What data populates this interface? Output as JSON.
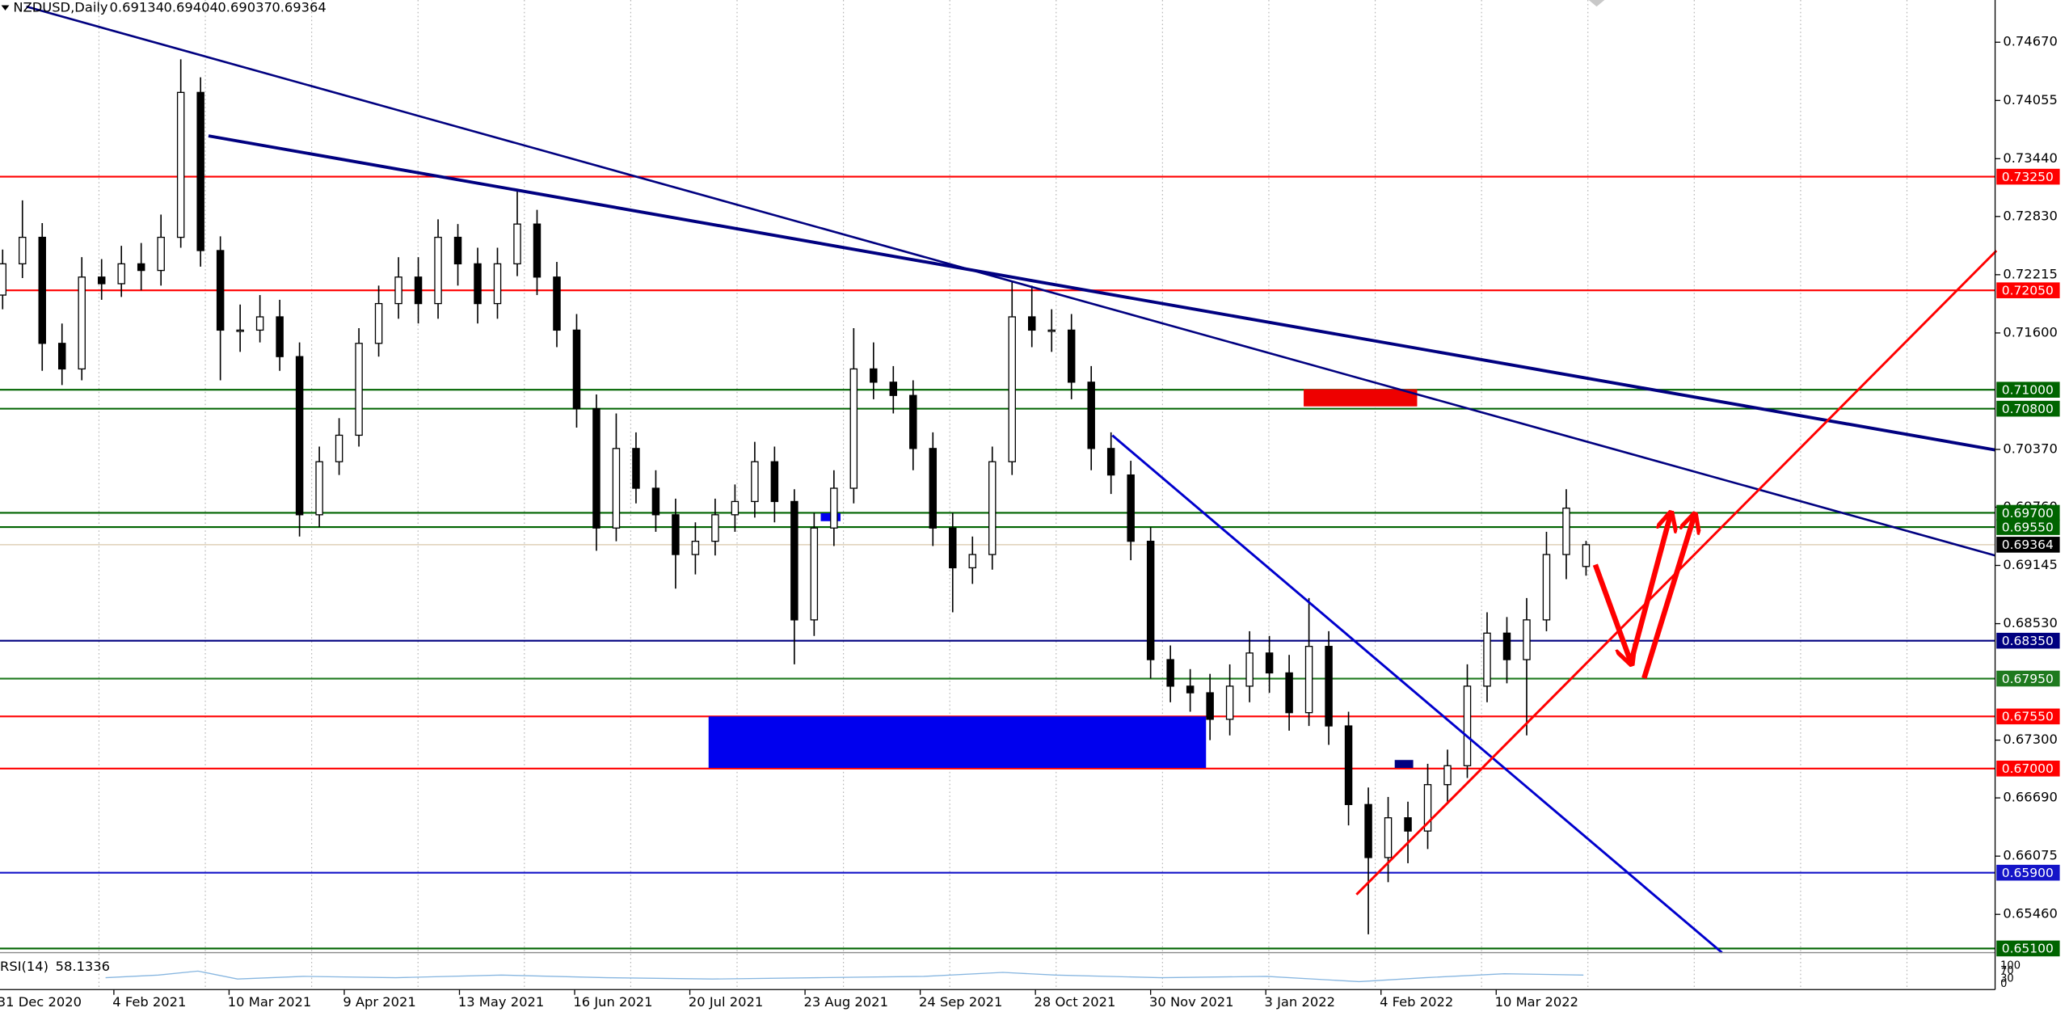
{
  "chart_data": {
    "type": "candlestick",
    "symbol": "NZDUSD,Daily",
    "open": [
      0.72,
      0.7233,
      0.7261,
      0.7149,
      0.7122,
      0.7219,
      0.7212,
      0.7233,
      0.7226,
      0.7261,
      0.7414,
      0.7247,
      0.7163,
      0.7163,
      0.7177,
      0.7135,
      0.6968,
      0.7024,
      0.7052,
      0.7149,
      0.7191,
      0.7219,
      0.7191,
      0.7261,
      0.7233,
      0.7191,
      0.7233,
      0.7275,
      0.7219,
      0.7163,
      0.708,
      0.6954,
      0.7038,
      0.6996,
      0.6968,
      0.6926,
      0.694,
      0.6968,
      0.6982,
      0.7024,
      0.6982,
      0.6857,
      0.6954,
      0.6996,
      0.7122,
      0.7108,
      0.7094,
      0.7038,
      0.6954,
      0.6912,
      0.6926,
      0.7024,
      0.7177,
      0.7163,
      0.7163,
      0.7108,
      0.7038,
      0.701,
      0.694,
      0.6815,
      0.6787,
      0.678,
      0.6752,
      0.6787,
      0.6822,
      0.6801,
      0.6759,
      0.6829,
      0.6745,
      0.6662,
      0.6606,
      0.6648,
      0.6634,
      0.6683,
      0.6703,
      0.6787,
      0.6843,
      0.6815,
      0.6857,
      0.6926,
      0.69134
    ],
    "high": [
      0.7248,
      0.73,
      0.7276,
      0.717,
      0.724,
      0.7238,
      0.7252,
      0.7255,
      0.7285,
      0.7449,
      0.743,
      0.7262,
      0.719,
      0.72,
      0.7195,
      0.715,
      0.704,
      0.707,
      0.7165,
      0.721,
      0.724,
      0.724,
      0.728,
      0.7275,
      0.725,
      0.725,
      0.731,
      0.729,
      0.7235,
      0.718,
      0.7095,
      0.7075,
      0.7055,
      0.7015,
      0.6985,
      0.696,
      0.6985,
      0.7,
      0.7045,
      0.704,
      0.6995,
      0.697,
      0.7015,
      0.7165,
      0.715,
      0.7125,
      0.711,
      0.7055,
      0.697,
      0.6945,
      0.704,
      0.7215,
      0.721,
      0.7185,
      0.718,
      0.7125,
      0.7055,
      0.7025,
      0.6955,
      0.683,
      0.6805,
      0.68,
      0.681,
      0.6845,
      0.684,
      0.682,
      0.688,
      0.6845,
      0.676,
      0.668,
      0.667,
      0.6665,
      0.6705,
      0.672,
      0.681,
      0.6865,
      0.686,
      0.688,
      0.695,
      0.6995,
      0.69404
    ],
    "low": [
      0.7185,
      0.7218,
      0.712,
      0.7105,
      0.711,
      0.7195,
      0.7198,
      0.7205,
      0.721,
      0.725,
      0.723,
      0.711,
      0.714,
      0.715,
      0.712,
      0.6945,
      0.6955,
      0.701,
      0.704,
      0.7135,
      0.7175,
      0.717,
      0.7175,
      0.721,
      0.717,
      0.7175,
      0.722,
      0.72,
      0.7145,
      0.706,
      0.693,
      0.694,
      0.698,
      0.695,
      0.689,
      0.6905,
      0.6925,
      0.695,
      0.6965,
      0.696,
      0.681,
      0.684,
      0.6935,
      0.698,
      0.709,
      0.7075,
      0.7015,
      0.6935,
      0.6865,
      0.6895,
      0.691,
      0.701,
      0.7145,
      0.714,
      0.709,
      0.7015,
      0.699,
      0.692,
      0.6795,
      0.677,
      0.676,
      0.673,
      0.6735,
      0.677,
      0.678,
      0.674,
      0.6745,
      0.6725,
      0.664,
      0.6525,
      0.658,
      0.66,
      0.6615,
      0.6665,
      0.669,
      0.677,
      0.679,
      0.6735,
      0.6845,
      0.69,
      0.69037
    ],
    "close": [
      0.7233,
      0.7261,
      0.7149,
      0.7122,
      0.7219,
      0.7212,
      0.7233,
      0.7226,
      0.7261,
      0.7414,
      0.7247,
      0.7163,
      0.7163,
      0.7177,
      0.7135,
      0.6968,
      0.7024,
      0.7052,
      0.7149,
      0.7191,
      0.7219,
      0.7191,
      0.7261,
      0.7233,
      0.7191,
      0.7233,
      0.7275,
      0.7219,
      0.7163,
      0.708,
      0.6954,
      0.7038,
      0.6996,
      0.6968,
      0.6926,
      0.694,
      0.6968,
      0.6982,
      0.7024,
      0.6982,
      0.6857,
      0.6954,
      0.6996,
      0.7122,
      0.7108,
      0.7094,
      0.7038,
      0.6954,
      0.6912,
      0.6926,
      0.7024,
      0.7177,
      0.7163,
      0.7163,
      0.7108,
      0.7038,
      0.701,
      0.694,
      0.6815,
      0.6787,
      0.678,
      0.6752,
      0.6787,
      0.6822,
      0.6801,
      0.6759,
      0.6829,
      0.6745,
      0.6662,
      0.6606,
      0.6648,
      0.6634,
      0.6683,
      0.6703,
      0.6787,
      0.6843,
      0.6815,
      0.6857,
      0.6926,
      0.6975,
      0.69364
    ],
    "up_color": "#ffffff",
    "down_color": "#000000",
    "date_labels": [
      "31 Dec 2020",
      "4 Feb 2021",
      "10 Mar 2021",
      "9 Apr 2021",
      "13 May 2021",
      "16 Jun 2021",
      "20 Jul 2021",
      "23 Aug 2021",
      "24 Sep 2021",
      "28 Oct 2021",
      "30 Nov 2021",
      "3 Jan 2022",
      "4 Feb 2022",
      "10 Mar 2022"
    ],
    "ylim": [
      0.65056,
      0.75116
    ],
    "yticks": [
      {
        "value": 0.7467,
        "label": "0.74670"
      },
      0.74055,
      {
        "value": 0.7344,
        "label": "0.73440"
      },
      {
        "value": 0.7283,
        "label": "0.72830"
      },
      0.72215,
      {
        "value": 0.716,
        "label": "0.71600"
      },
      {
        "value": 0.7037,
        "label": "0.70370"
      },
      {
        "value": 0.6976,
        "label": "0.69760"
      },
      0.69145,
      {
        "value": 0.6853,
        "label": "0.68530"
      },
      {
        "value": 0.673,
        "label": "0.67300"
      },
      {
        "value": 0.6669,
        "label": "0.66690"
      },
      0.66075,
      {
        "value": 0.6546,
        "label": "0.65460"
      }
    ],
    "grid": true,
    "levels": [
      {
        "value": 0.7325,
        "label": "0.73250",
        "color": "#ff0000"
      },
      {
        "value": 0.7205,
        "label": "0.72050",
        "color": "#ff0000"
      },
      {
        "value": 0.71,
        "label": "0.71000",
        "color": "#006400"
      },
      {
        "value": 0.708,
        "label": "0.70800",
        "color": "#006400"
      },
      {
        "value": 0.697,
        "label": "0.69700",
        "color": "#006400"
      },
      {
        "value": 0.6955,
        "label": "0.69550",
        "color": "#006400"
      },
      {
        "value": 0.69364,
        "label": "0.69364",
        "color": "#000000"
      },
      {
        "value": 0.6835,
        "label": "0.68350",
        "color": "#000080"
      },
      {
        "value": 0.6795,
        "label": "0.67950",
        "color": "#1f7a1f"
      },
      {
        "value": 0.6755,
        "label": "0.67550",
        "color": "#ff0000"
      },
      {
        "value": 0.67,
        "label": "0.67000",
        "color": "#ff0000"
      },
      {
        "value": 0.659,
        "label": "0.65900",
        "color": "#1414c8"
      },
      {
        "value": 0.651,
        "label": "0.65100",
        "color": "#006400"
      }
    ],
    "indicator": {
      "name": "RSI(14)",
      "value": 58.1336,
      "ticks": [
        100,
        70,
        30,
        0
      ]
    }
  }
}
